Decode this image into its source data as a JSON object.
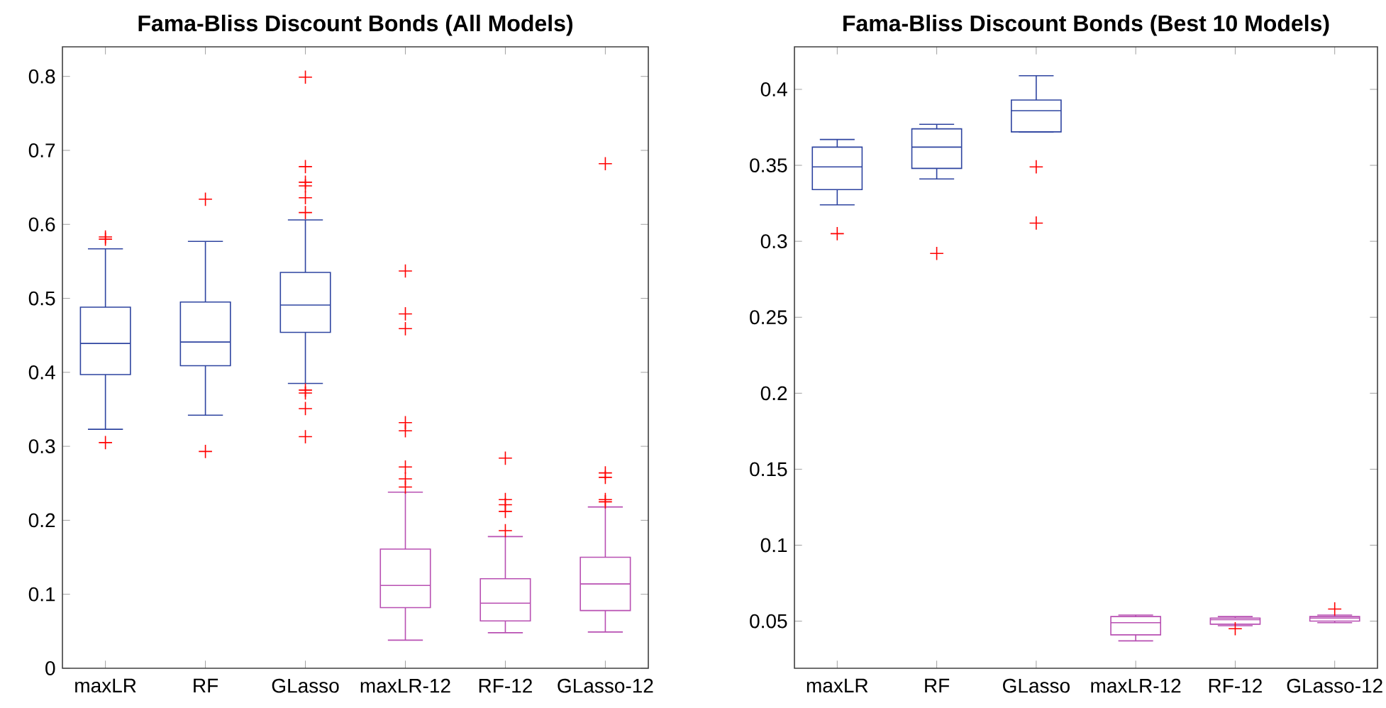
{
  "chart_data": [
    {
      "type": "box",
      "title": "Fama-Bliss Discount Bonds (All Models)",
      "categories": [
        "maxLR",
        "RF",
        "GLasso",
        "maxLR-12",
        "RF-12",
        "GLasso-12"
      ],
      "colors": [
        "#2e44a0",
        "#2e44a0",
        "#2e44a0",
        "#b84fb2",
        "#b84fb2",
        "#b84fb2"
      ],
      "boxes": [
        {
          "low": 0.323,
          "q1": 0.397,
          "median": 0.439,
          "q3": 0.488,
          "high": 0.567,
          "outliers": [
            0.583,
            0.58,
            0.305
          ]
        },
        {
          "low": 0.342,
          "q1": 0.409,
          "median": 0.441,
          "q3": 0.495,
          "high": 0.577,
          "outliers": [
            0.634,
            0.293
          ]
        },
        {
          "low": 0.385,
          "q1": 0.454,
          "median": 0.491,
          "q3": 0.535,
          "high": 0.606,
          "outliers": [
            0.799,
            0.678,
            0.657,
            0.652,
            0.636,
            0.616,
            0.376,
            0.372,
            0.351,
            0.313
          ]
        },
        {
          "low": 0.038,
          "q1": 0.082,
          "median": 0.112,
          "q3": 0.161,
          "high": 0.238,
          "outliers": [
            0.537,
            0.479,
            0.459,
            0.332,
            0.321,
            0.272,
            0.256,
            0.245
          ]
        },
        {
          "low": 0.048,
          "q1": 0.064,
          "median": 0.088,
          "q3": 0.121,
          "high": 0.178,
          "outliers": [
            0.284,
            0.228,
            0.221,
            0.212,
            0.186
          ]
        },
        {
          "low": 0.049,
          "q1": 0.078,
          "median": 0.114,
          "q3": 0.15,
          "high": 0.218,
          "outliers": [
            0.682,
            0.264,
            0.258,
            0.228,
            0.225
          ]
        }
      ],
      "ylim": [
        0,
        0.84
      ],
      "yticks": [
        0,
        0.1,
        0.2,
        0.3,
        0.4,
        0.5,
        0.6,
        0.7,
        0.8
      ]
    },
    {
      "type": "box",
      "title": "Fama-Bliss Discount Bonds (Best 10 Models)",
      "categories": [
        "maxLR",
        "RF",
        "GLasso",
        "maxLR-12",
        "RF-12",
        "GLasso-12"
      ],
      "colors": [
        "#2e44a0",
        "#2e44a0",
        "#2e44a0",
        "#b84fb2",
        "#b84fb2",
        "#b84fb2"
      ],
      "boxes": [
        {
          "low": 0.324,
          "q1": 0.334,
          "median": 0.349,
          "q3": 0.362,
          "high": 0.367,
          "outliers": [
            0.305
          ]
        },
        {
          "low": 0.341,
          "q1": 0.348,
          "median": 0.362,
          "q3": 0.374,
          "high": 0.377,
          "outliers": [
            0.292
          ]
        },
        {
          "low": 0.372,
          "q1": 0.372,
          "median": 0.386,
          "q3": 0.393,
          "high": 0.409,
          "outliers": [
            0.349,
            0.312
          ]
        },
        {
          "low": 0.037,
          "q1": 0.041,
          "median": 0.049,
          "q3": 0.053,
          "high": 0.054
        },
        {
          "low": 0.047,
          "q1": 0.048,
          "median": 0.051,
          "q3": 0.052,
          "high": 0.053,
          "outliers": [
            0.045
          ]
        },
        {
          "low": 0.049,
          "q1": 0.05,
          "median": 0.052,
          "q3": 0.053,
          "high": 0.054,
          "outliers": [
            0.058
          ]
        }
      ],
      "ylim": [
        0.019,
        0.428
      ],
      "yticks": [
        0.05,
        0.1,
        0.15,
        0.2,
        0.25,
        0.3,
        0.35,
        0.4
      ]
    }
  ]
}
